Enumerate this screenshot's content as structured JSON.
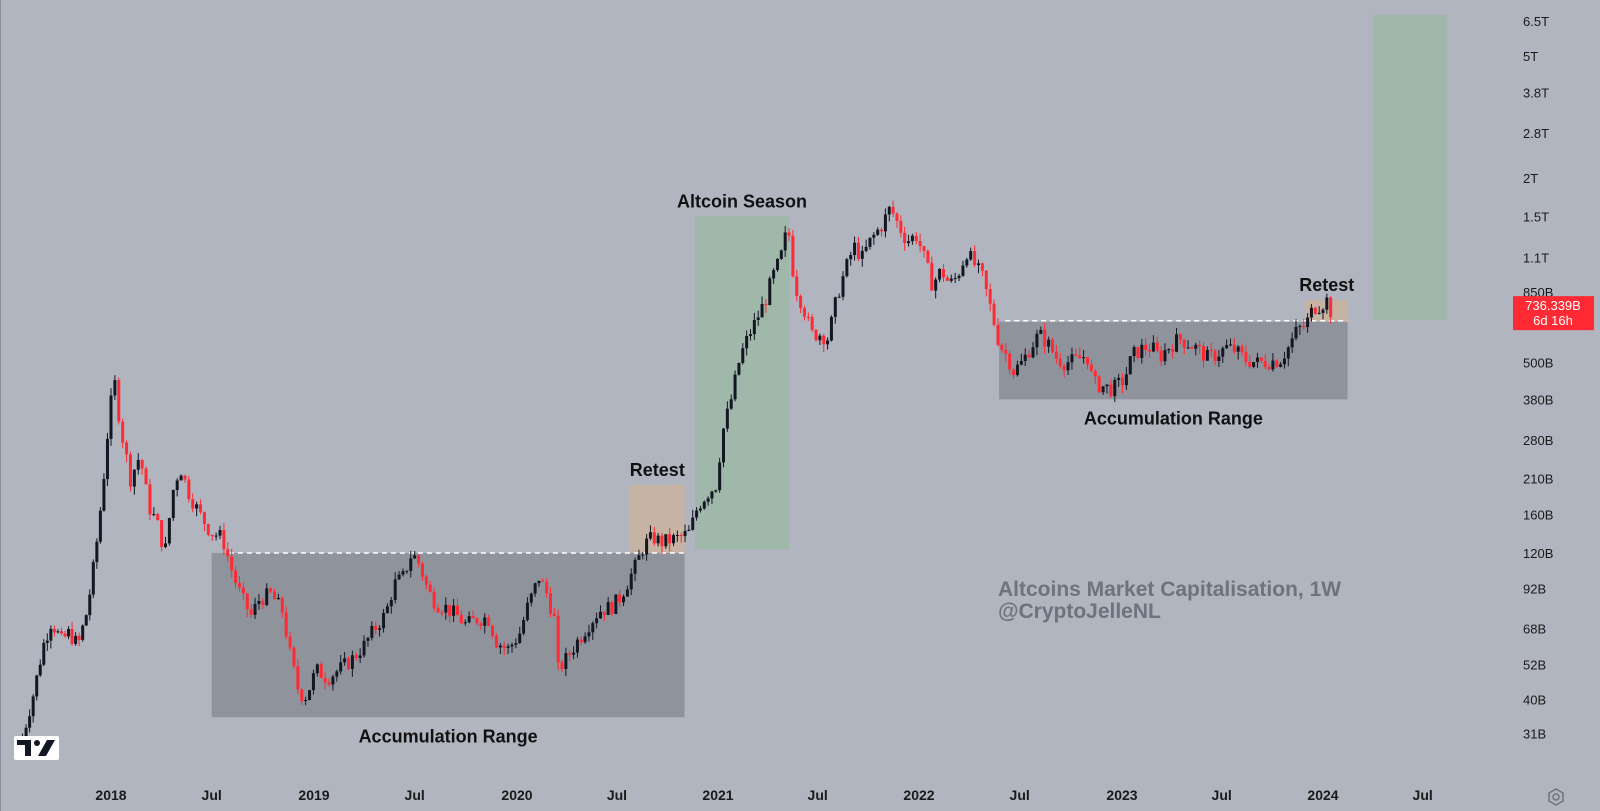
{
  "chart_data": {
    "type": "candlestick",
    "timeframe": "1W",
    "scale": "log",
    "watermark": {
      "line1": "Altcoins Market Capitalisation, 1W",
      "line2": "@CryptoJelleNL"
    },
    "colors": {
      "background": "#b1b5c0",
      "up": "#131722",
      "down": "#ff2a33",
      "accumulation_zone": "#8f939c",
      "season_zone": "#9fb8aa",
      "projection_zone": "#9fb8aa",
      "retest_zone": "#c9b3a0",
      "price_tag": "#ff2a33"
    },
    "x_axis": {
      "range": [
        "2017-07-01",
        "2024-11-01"
      ],
      "ticks": [
        {
          "label": "2018",
          "date": "2018-01-01",
          "bold": true
        },
        {
          "label": "Jul",
          "date": "2018-07-01",
          "bold": false
        },
        {
          "label": "2019",
          "date": "2019-01-01",
          "bold": true
        },
        {
          "label": "Jul",
          "date": "2019-07-01",
          "bold": false
        },
        {
          "label": "2020",
          "date": "2020-01-01",
          "bold": true
        },
        {
          "label": "Jul",
          "date": "2020-07-01",
          "bold": false
        },
        {
          "label": "2021",
          "date": "2021-01-01",
          "bold": true
        },
        {
          "label": "Jul",
          "date": "2021-07-01",
          "bold": false
        },
        {
          "label": "2022",
          "date": "2022-01-01",
          "bold": true
        },
        {
          "label": "Jul",
          "date": "2022-07-01",
          "bold": false
        },
        {
          "label": "2023",
          "date": "2023-01-01",
          "bold": true
        },
        {
          "label": "Jul",
          "date": "2023-07-01",
          "bold": false
        },
        {
          "label": "2024",
          "date": "2024-01-01",
          "bold": true
        },
        {
          "label": "Jul",
          "date": "2024-07-01",
          "bold": false
        }
      ]
    },
    "y_axis": {
      "range_billions": [
        26,
        6800
      ],
      "ticks": [
        {
          "label": "6.5T",
          "value": 6500
        },
        {
          "label": "5T",
          "value": 5000
        },
        {
          "label": "3.8T",
          "value": 3800
        },
        {
          "label": "2.8T",
          "value": 2800
        },
        {
          "label": "2T",
          "value": 2000
        },
        {
          "label": "1.5T",
          "value": 1500
        },
        {
          "label": "1.1T",
          "value": 1100
        },
        {
          "label": "850B",
          "value": 850
        },
        {
          "label": "500B",
          "value": 500
        },
        {
          "label": "380B",
          "value": 380
        },
        {
          "label": "280B",
          "value": 280
        },
        {
          "label": "210B",
          "value": 210
        },
        {
          "label": "160B",
          "value": 160
        },
        {
          "label": "120B",
          "value": 120
        },
        {
          "label": "92B",
          "value": 92
        },
        {
          "label": "68B",
          "value": 68
        },
        {
          "label": "52B",
          "value": 52
        },
        {
          "label": "40B",
          "value": 40
        },
        {
          "label": "31B",
          "value": 31
        }
      ]
    },
    "price_tag": {
      "value": 736.339,
      "text_line1": "736.339B",
      "text_line2": "6d 16h"
    },
    "close_series_billions": [
      [
        "2017-07-10",
        30
      ],
      [
        "2017-08-01",
        42
      ],
      [
        "2017-08-20",
        60
      ],
      [
        "2017-09-05",
        72
      ],
      [
        "2017-09-25",
        62
      ],
      [
        "2017-10-10",
        66
      ],
      [
        "2017-10-28",
        60
      ],
      [
        "2017-11-15",
        78
      ],
      [
        "2017-12-01",
        118
      ],
      [
        "2017-12-15",
        190
      ],
      [
        "2017-12-28",
        330
      ],
      [
        "2018-01-07",
        440
      ],
      [
        "2018-01-18",
        310
      ],
      [
        "2018-02-05",
        210
      ],
      [
        "2018-02-22",
        250
      ],
      [
        "2018-03-10",
        170
      ],
      [
        "2018-03-25",
        150
      ],
      [
        "2018-04-08",
        120
      ],
      [
        "2018-04-22",
        190
      ],
      [
        "2018-05-05",
        230
      ],
      [
        "2018-05-20",
        190
      ],
      [
        "2018-06-10",
        160
      ],
      [
        "2018-06-30",
        140
      ],
      [
        "2018-07-20",
        135
      ],
      [
        "2018-08-10",
        100
      ],
      [
        "2018-08-25",
        85
      ],
      [
        "2018-09-10",
        75
      ],
      [
        "2018-09-25",
        85
      ],
      [
        "2018-10-15",
        88
      ],
      [
        "2018-11-05",
        78
      ],
      [
        "2018-11-20",
        55
      ],
      [
        "2018-12-05",
        42
      ],
      [
        "2018-12-18",
        41
      ],
      [
        "2019-01-05",
        50
      ],
      [
        "2019-01-25",
        47
      ],
      [
        "2019-02-15",
        50
      ],
      [
        "2019-03-10",
        54
      ],
      [
        "2019-04-01",
        60
      ],
      [
        "2019-04-20",
        68
      ],
      [
        "2019-05-10",
        76
      ],
      [
        "2019-05-25",
        95
      ],
      [
        "2019-06-10",
        100
      ],
      [
        "2019-06-26",
        120
      ],
      [
        "2019-07-10",
        110
      ],
      [
        "2019-07-25",
        90
      ],
      [
        "2019-08-10",
        82
      ],
      [
        "2019-08-25",
        80
      ],
      [
        "2019-09-15",
        75
      ],
      [
        "2019-10-01",
        70
      ],
      [
        "2019-10-20",
        73
      ],
      [
        "2019-11-10",
        74
      ],
      [
        "2019-11-25",
        62
      ],
      [
        "2019-12-15",
        58
      ],
      [
        "2020-01-05",
        65
      ],
      [
        "2020-01-20",
        80
      ],
      [
        "2020-02-10",
        100
      ],
      [
        "2020-02-25",
        88
      ],
      [
        "2020-03-10",
        72
      ],
      [
        "2020-03-16",
        50
      ],
      [
        "2020-03-30",
        54
      ],
      [
        "2020-04-20",
        62
      ],
      [
        "2020-05-10",
        70
      ],
      [
        "2020-05-30",
        78
      ],
      [
        "2020-06-20",
        80
      ],
      [
        "2020-07-05",
        85
      ],
      [
        "2020-07-20",
        96
      ],
      [
        "2020-08-05",
        110
      ],
      [
        "2020-08-20",
        128
      ],
      [
        "2020-09-05",
        135
      ],
      [
        "2020-09-20",
        130
      ],
      [
        "2020-10-05",
        132
      ],
      [
        "2020-10-25",
        135
      ],
      [
        "2020-11-10",
        140
      ],
      [
        "2020-11-25",
        170
      ],
      [
        "2020-12-10",
        185
      ],
      [
        "2020-12-28",
        200
      ],
      [
        "2021-01-10",
        300
      ],
      [
        "2021-01-25",
        380
      ],
      [
        "2021-02-10",
        520
      ],
      [
        "2021-02-25",
        610
      ],
      [
        "2021-03-10",
        680
      ],
      [
        "2021-03-28",
        800
      ],
      [
        "2021-04-10",
        950
      ],
      [
        "2021-04-25",
        1100
      ],
      [
        "2021-05-08",
        1400
      ],
      [
        "2021-05-20",
        900
      ],
      [
        "2021-06-05",
        760
      ],
      [
        "2021-06-20",
        620
      ],
      [
        "2021-07-05",
        620
      ],
      [
        "2021-07-20",
        600
      ],
      [
        "2021-08-05",
        820
      ],
      [
        "2021-08-20",
        1000
      ],
      [
        "2021-09-05",
        1200
      ],
      [
        "2021-09-20",
        1100
      ],
      [
        "2021-10-05",
        1250
      ],
      [
        "2021-10-25",
        1400
      ],
      [
        "2021-11-10",
        1600
      ],
      [
        "2021-11-25",
        1400
      ],
      [
        "2021-12-10",
        1250
      ],
      [
        "2021-12-28",
        1300
      ],
      [
        "2022-01-10",
        1100
      ],
      [
        "2022-01-25",
        900
      ],
      [
        "2022-02-10",
        1000
      ],
      [
        "2022-02-25",
        900
      ],
      [
        "2022-03-10",
        950
      ],
      [
        "2022-03-28",
        1150
      ],
      [
        "2022-04-10",
        1050
      ],
      [
        "2022-04-25",
        950
      ],
      [
        "2022-05-10",
        750
      ],
      [
        "2022-05-25",
        580
      ],
      [
        "2022-06-10",
        520
      ],
      [
        "2022-06-20",
        470
      ],
      [
        "2022-07-05",
        500
      ],
      [
        "2022-07-20",
        560
      ],
      [
        "2022-08-05",
        620
      ],
      [
        "2022-08-20",
        580
      ],
      [
        "2022-09-05",
        520
      ],
      [
        "2022-09-20",
        500
      ],
      [
        "2022-10-10",
        510
      ],
      [
        "2022-10-30",
        530
      ],
      [
        "2022-11-10",
        430
      ],
      [
        "2022-11-25",
        420
      ],
      [
        "2022-12-15",
        410
      ],
      [
        "2023-01-05",
        440
      ],
      [
        "2023-01-20",
        530
      ],
      [
        "2023-02-10",
        560
      ],
      [
        "2023-02-25",
        560
      ],
      [
        "2023-03-10",
        520
      ],
      [
        "2023-03-25",
        560
      ],
      [
        "2023-04-15",
        600
      ],
      [
        "2023-04-30",
        580
      ],
      [
        "2023-05-15",
        560
      ],
      [
        "2023-06-05",
        520
      ],
      [
        "2023-06-20",
        530
      ],
      [
        "2023-07-10",
        560
      ],
      [
        "2023-07-25",
        550
      ],
      [
        "2023-08-15",
        510
      ],
      [
        "2023-09-05",
        500
      ],
      [
        "2023-09-25",
        505
      ],
      [
        "2023-10-15",
        510
      ],
      [
        "2023-10-30",
        560
      ],
      [
        "2023-11-15",
        640
      ],
      [
        "2023-11-30",
        660
      ],
      [
        "2023-12-15",
        760
      ],
      [
        "2023-12-28",
        770
      ],
      [
        "2024-01-08",
        800
      ],
      [
        "2024-01-15",
        736.339
      ]
    ],
    "zones": [
      {
        "kind": "accumulation",
        "label": "Accumulation Range",
        "from": "2018-07-01",
        "to": "2020-11-01",
        "low": 35,
        "high": 120
      },
      {
        "kind": "retest",
        "label": "Retest",
        "from": "2020-07-25",
        "to": "2020-11-01",
        "low": 120,
        "high": 200
      },
      {
        "kind": "season",
        "label": "Altcoin Season",
        "from": "2020-11-20",
        "to": "2021-05-10",
        "low": 123,
        "high": 1500
      },
      {
        "kind": "accumulation",
        "label": "Accumulation Range",
        "from": "2022-05-25",
        "to": "2024-02-15",
        "low": 380,
        "high": 680
      },
      {
        "kind": "retest",
        "label": "Retest",
        "from": "2023-12-01",
        "to": "2024-02-15",
        "low": 680,
        "high": 800
      },
      {
        "kind": "projection",
        "label": "",
        "from": "2024-04-01",
        "to": "2024-08-15",
        "low": 690,
        "high": 6800
      }
    ],
    "resistance_lines": [
      {
        "from": "2018-08-01",
        "to": "2020-11-01",
        "value": 120
      },
      {
        "from": "2022-06-05",
        "to": "2024-02-15",
        "value": 685
      }
    ]
  }
}
